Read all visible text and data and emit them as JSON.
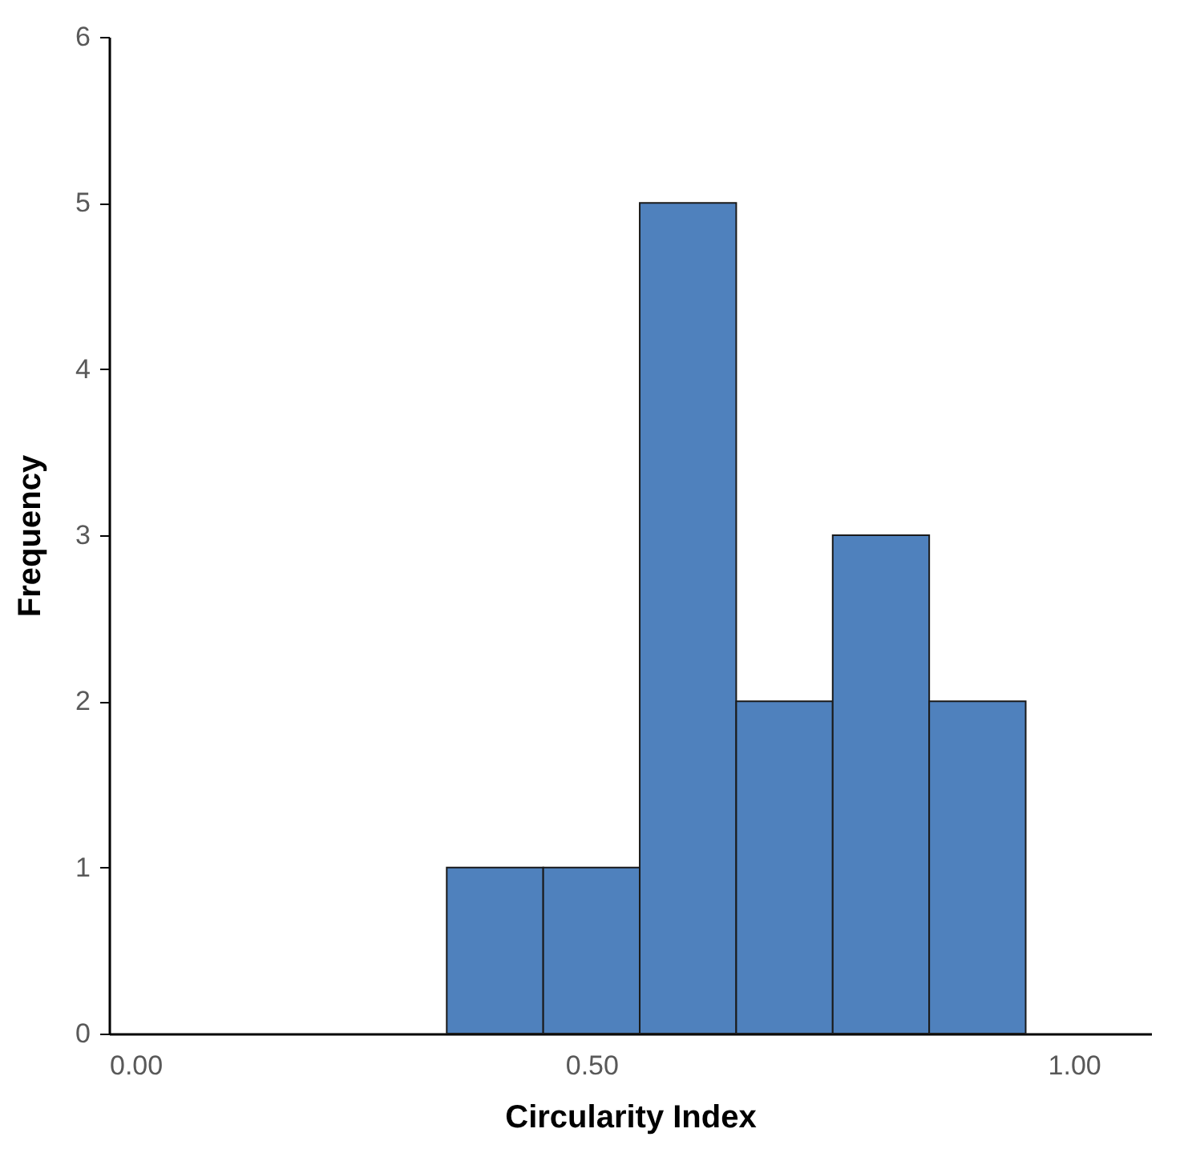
{
  "chart_data": {
    "type": "histogram",
    "xlabel": "Circularity Index",
    "ylabel": "Frequency",
    "bins": [
      0.35,
      0.45,
      0.55,
      0.65,
      0.75,
      0.85,
      0.95
    ],
    "values": [
      1,
      1,
      5,
      2,
      3,
      2
    ],
    "color": "#4f81bd",
    "xlim": [
      0,
      1.08
    ],
    "xticks": [
      {
        "value": 0,
        "label": "0.00"
      },
      {
        "value": 0.5,
        "label": "0.50"
      },
      {
        "value": 1,
        "label": "1.00"
      }
    ],
    "ylim": [
      0,
      6
    ],
    "yticks": [
      0,
      1,
      2,
      3,
      4,
      5,
      6
    ],
    "grid": false
  }
}
